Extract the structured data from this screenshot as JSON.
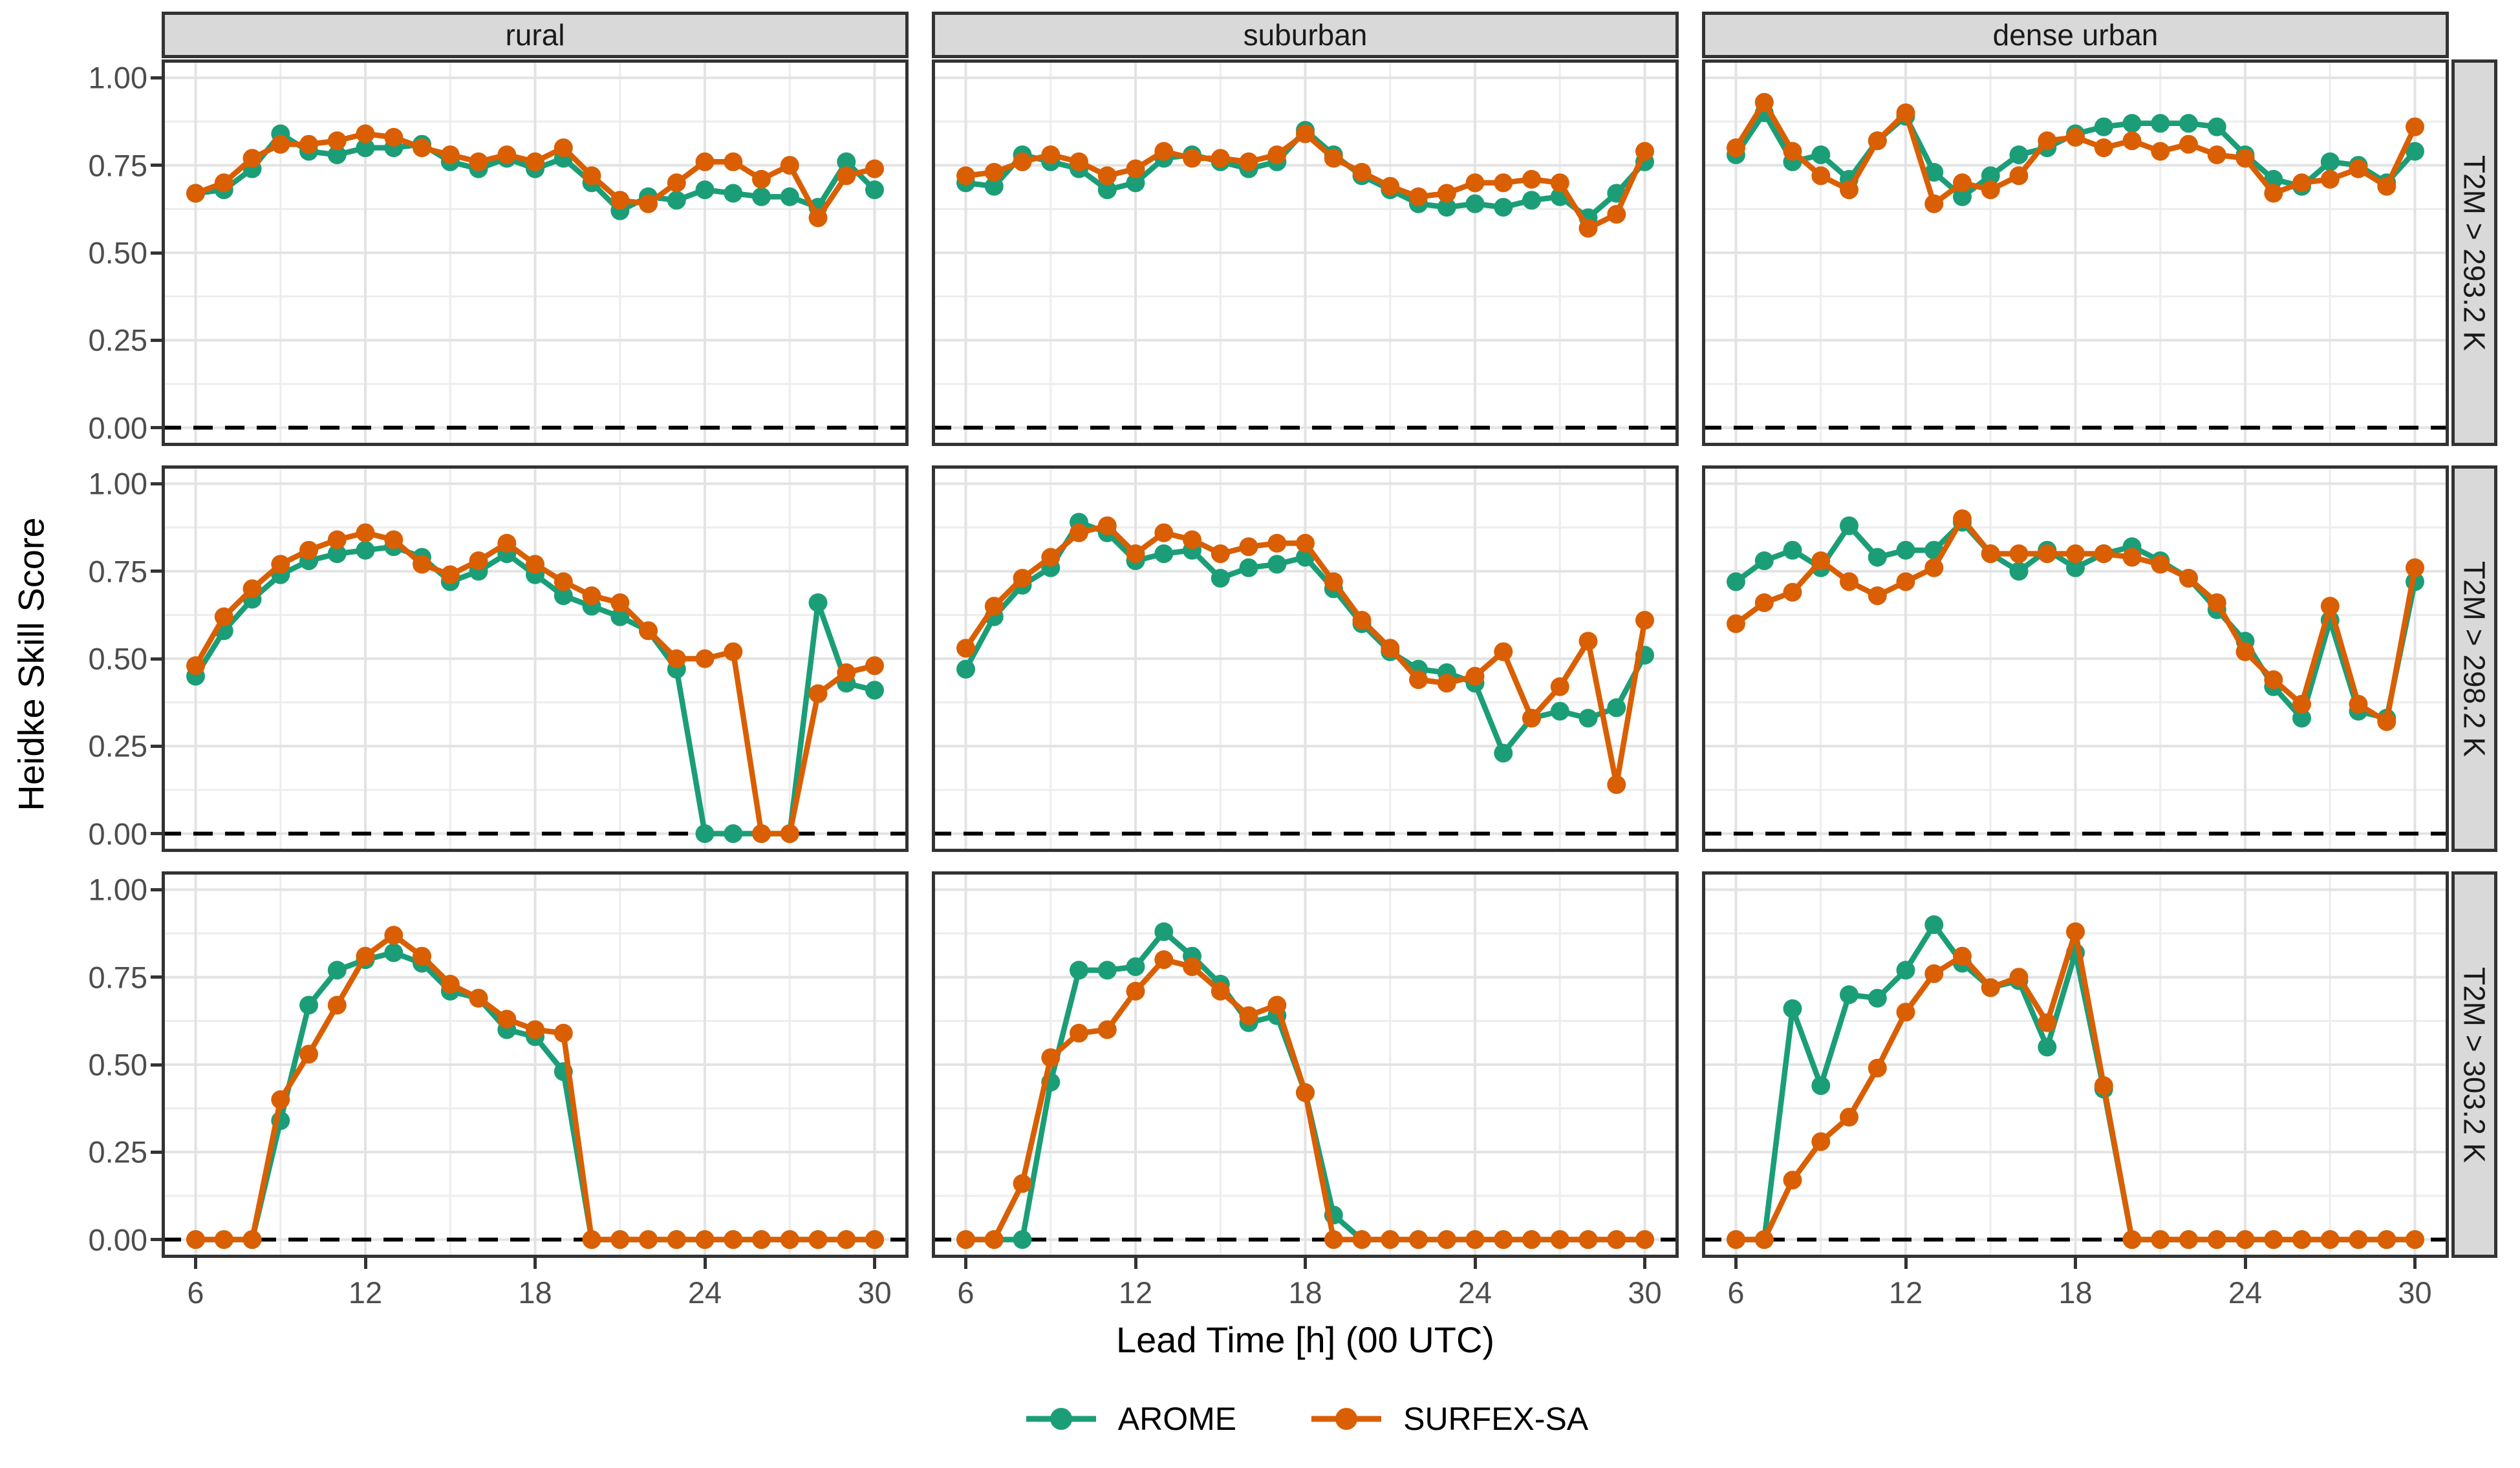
{
  "facets": {
    "columns": [
      "rural",
      "suburban",
      "dense urban"
    ],
    "rows": [
      "T2M > 293.2 K",
      "T2M > 298.2 K",
      "T2M > 303.2 K"
    ]
  },
  "axes": {
    "x": {
      "label": "Lead Time [h] (00 UTC)",
      "major_ticks": [
        6,
        12,
        18,
        24,
        30
      ],
      "minor_ticks": [
        9,
        15,
        21,
        27
      ],
      "range": [
        4.8,
        31.2
      ]
    },
    "y": {
      "label": "Heidke Skill Score",
      "major_ticks": [
        1.0,
        0.75,
        0.5,
        0.25,
        0.0
      ],
      "tick_labels": [
        "1.00",
        "0.75",
        "0.50",
        "0.25",
        "0.00"
      ],
      "minor_ticks": [
        0.875,
        0.625,
        0.375,
        0.125
      ],
      "range": [
        -0.0525,
        1.0525
      ]
    }
  },
  "legend": {
    "items": [
      {
        "label": "AROME",
        "color": "#1B9E77"
      },
      {
        "label": "SURFEX-SA",
        "color": "#D95F02"
      }
    ]
  },
  "style": {
    "grid_major_color": "#e3e3e3",
    "grid_minor_color": "#ededed",
    "panel_border_color": "#333333",
    "strip_fill": "#d9d9d9",
    "tick_text_color": "#4d4d4d",
    "reference_line_color": "#000000"
  },
  "chart_data": {
    "type": "line",
    "title": "",
    "xlabel": "Lead Time [h] (00 UTC)",
    "ylabel": "Heidke Skill Score",
    "x": [
      6,
      7,
      8,
      9,
      10,
      11,
      12,
      13,
      14,
      15,
      16,
      17,
      18,
      19,
      20,
      21,
      22,
      23,
      24,
      25,
      26,
      27,
      28,
      29,
      30
    ],
    "ylim": [
      0,
      1
    ],
    "reference_line_y": 0,
    "legend_position": "bottom",
    "panels": [
      {
        "facet_col": "rural",
        "facet_row": "T2M > 293.2 K",
        "series": [
          {
            "name": "AROME",
            "values": [
              0.67,
              0.68,
              0.74,
              0.84,
              0.79,
              0.78,
              0.8,
              0.8,
              0.81,
              0.76,
              0.74,
              0.77,
              0.74,
              0.77,
              0.7,
              0.62,
              0.66,
              0.65,
              0.68,
              0.67,
              0.66,
              0.66,
              0.63,
              0.76,
              0.68
            ]
          },
          {
            "name": "SURFEX-SA",
            "values": [
              0.67,
              0.7,
              0.77,
              0.81,
              0.81,
              0.82,
              0.84,
              0.83,
              0.8,
              0.78,
              0.76,
              0.78,
              0.76,
              0.8,
              0.72,
              0.65,
              0.64,
              0.7,
              0.76,
              0.76,
              0.71,
              0.75,
              0.6,
              0.72,
              0.74
            ]
          }
        ]
      },
      {
        "facet_col": "suburban",
        "facet_row": "T2M > 293.2 K",
        "series": [
          {
            "name": "AROME",
            "values": [
              0.7,
              0.69,
              0.78,
              0.76,
              0.74,
              0.68,
              0.7,
              0.77,
              0.78,
              0.76,
              0.74,
              0.76,
              0.85,
              0.78,
              0.72,
              0.68,
              0.64,
              0.63,
              0.64,
              0.63,
              0.65,
              0.66,
              0.6,
              0.67,
              0.76
            ]
          },
          {
            "name": "SURFEX-SA",
            "values": [
              0.72,
              0.73,
              0.76,
              0.78,
              0.76,
              0.72,
              0.74,
              0.79,
              0.77,
              0.77,
              0.76,
              0.78,
              0.84,
              0.77,
              0.73,
              0.69,
              0.66,
              0.67,
              0.7,
              0.7,
              0.71,
              0.7,
              0.57,
              0.61,
              0.79
            ]
          }
        ]
      },
      {
        "facet_col": "dense urban",
        "facet_row": "T2M > 293.2 K",
        "series": [
          {
            "name": "AROME",
            "values": [
              0.78,
              0.9,
              0.76,
              0.78,
              0.71,
              0.82,
              0.89,
              0.73,
              0.66,
              0.72,
              0.78,
              0.8,
              0.84,
              0.86,
              0.87,
              0.87,
              0.87,
              0.86,
              0.78,
              0.71,
              0.69,
              0.76,
              0.75,
              0.7,
              0.79
            ]
          },
          {
            "name": "SURFEX-SA",
            "values": [
              0.8,
              0.93,
              0.79,
              0.72,
              0.68,
              0.82,
              0.9,
              0.64,
              0.7,
              0.68,
              0.72,
              0.82,
              0.83,
              0.8,
              0.82,
              0.79,
              0.81,
              0.78,
              0.77,
              0.67,
              0.7,
              0.71,
              0.74,
              0.69,
              0.86
            ]
          }
        ]
      },
      {
        "facet_col": "rural",
        "facet_row": "T2M > 298.2 K",
        "series": [
          {
            "name": "AROME",
            "values": [
              0.45,
              0.58,
              0.67,
              0.74,
              0.78,
              0.8,
              0.81,
              0.82,
              0.79,
              0.72,
              0.75,
              0.8,
              0.74,
              0.68,
              0.65,
              0.62,
              0.58,
              0.47,
              0.0,
              0.0,
              0.0,
              0.0,
              0.66,
              0.43,
              0.41
            ]
          },
          {
            "name": "SURFEX-SA",
            "values": [
              0.48,
              0.62,
              0.7,
              0.77,
              0.81,
              0.84,
              0.86,
              0.84,
              0.77,
              0.74,
              0.78,
              0.83,
              0.77,
              0.72,
              0.68,
              0.66,
              0.58,
              0.5,
              0.5,
              0.52,
              0.0,
              0.0,
              0.4,
              0.46,
              0.48
            ]
          }
        ]
      },
      {
        "facet_col": "suburban",
        "facet_row": "T2M > 298.2 K",
        "series": [
          {
            "name": "AROME",
            "values": [
              0.47,
              0.62,
              0.71,
              0.76,
              0.89,
              0.86,
              0.78,
              0.8,
              0.81,
              0.73,
              0.76,
              0.77,
              0.79,
              0.7,
              0.6,
              0.52,
              0.47,
              0.46,
              0.43,
              0.23,
              0.33,
              0.35,
              0.33,
              0.36,
              0.51
            ]
          },
          {
            "name": "SURFEX-SA",
            "values": [
              0.53,
              0.65,
              0.73,
              0.79,
              0.86,
              0.88,
              0.8,
              0.86,
              0.84,
              0.8,
              0.82,
              0.83,
              0.83,
              0.72,
              0.61,
              0.53,
              0.44,
              0.43,
              0.45,
              0.52,
              0.33,
              0.42,
              0.55,
              0.14,
              0.61
            ]
          }
        ]
      },
      {
        "facet_col": "dense urban",
        "facet_row": "T2M > 298.2 K",
        "series": [
          {
            "name": "AROME",
            "values": [
              0.72,
              0.78,
              0.81,
              0.76,
              0.88,
              0.79,
              0.81,
              0.81,
              0.89,
              0.8,
              0.75,
              0.81,
              0.76,
              0.8,
              0.82,
              0.78,
              0.73,
              0.64,
              0.55,
              0.42,
              0.33,
              0.61,
              0.35,
              0.33,
              0.72
            ]
          },
          {
            "name": "SURFEX-SA",
            "values": [
              0.6,
              0.66,
              0.69,
              0.78,
              0.72,
              0.68,
              0.72,
              0.76,
              0.9,
              0.8,
              0.8,
              0.8,
              0.8,
              0.8,
              0.79,
              0.77,
              0.73,
              0.66,
              0.52,
              0.44,
              0.37,
              0.65,
              0.37,
              0.32,
              0.76
            ]
          }
        ]
      },
      {
        "facet_col": "rural",
        "facet_row": "T2M > 303.2 K",
        "series": [
          {
            "name": "AROME",
            "values": [
              0.0,
              0.0,
              0.0,
              0.34,
              0.67,
              0.77,
              0.8,
              0.82,
              0.79,
              0.71,
              0.69,
              0.6,
              0.58,
              0.48,
              0.0,
              0.0,
              0.0,
              0.0,
              0.0,
              0.0,
              0.0,
              0.0,
              0.0,
              0.0,
              0.0
            ]
          },
          {
            "name": "SURFEX-SA",
            "values": [
              0.0,
              0.0,
              0.0,
              0.4,
              0.53,
              0.67,
              0.81,
              0.87,
              0.81,
              0.73,
              0.69,
              0.63,
              0.6,
              0.59,
              0.0,
              0.0,
              0.0,
              0.0,
              0.0,
              0.0,
              0.0,
              0.0,
              0.0,
              0.0,
              0.0
            ]
          }
        ]
      },
      {
        "facet_col": "suburban",
        "facet_row": "T2M > 303.2 K",
        "series": [
          {
            "name": "AROME",
            "values": [
              0.0,
              0.0,
              0.0,
              0.45,
              0.77,
              0.77,
              0.78,
              0.88,
              0.81,
              0.73,
              0.62,
              0.64,
              0.42,
              0.07,
              0.0,
              0.0,
              0.0,
              0.0,
              0.0,
              0.0,
              0.0,
              0.0,
              0.0,
              0.0,
              0.0
            ]
          },
          {
            "name": "SURFEX-SA",
            "values": [
              0.0,
              0.0,
              0.16,
              0.52,
              0.59,
              0.6,
              0.71,
              0.8,
              0.78,
              0.71,
              0.64,
              0.67,
              0.42,
              0.0,
              0.0,
              0.0,
              0.0,
              0.0,
              0.0,
              0.0,
              0.0,
              0.0,
              0.0,
              0.0,
              0.0
            ]
          }
        ]
      },
      {
        "facet_col": "dense urban",
        "facet_row": "T2M > 303.2 K",
        "series": [
          {
            "name": "AROME",
            "values": [
              0.0,
              0.0,
              0.66,
              0.44,
              0.7,
              0.69,
              0.77,
              0.9,
              0.79,
              0.72,
              0.74,
              0.55,
              0.82,
              0.43,
              0.0,
              0.0,
              0.0,
              0.0,
              0.0,
              0.0,
              0.0,
              0.0,
              0.0,
              0.0,
              0.0
            ]
          },
          {
            "name": "SURFEX-SA",
            "values": [
              0.0,
              0.0,
              0.17,
              0.28,
              0.35,
              0.49,
              0.65,
              0.76,
              0.81,
              0.72,
              0.75,
              0.62,
              0.88,
              0.44,
              0.0,
              0.0,
              0.0,
              0.0,
              0.0,
              0.0,
              0.0,
              0.0,
              0.0,
              0.0,
              0.0
            ]
          }
        ]
      }
    ]
  }
}
